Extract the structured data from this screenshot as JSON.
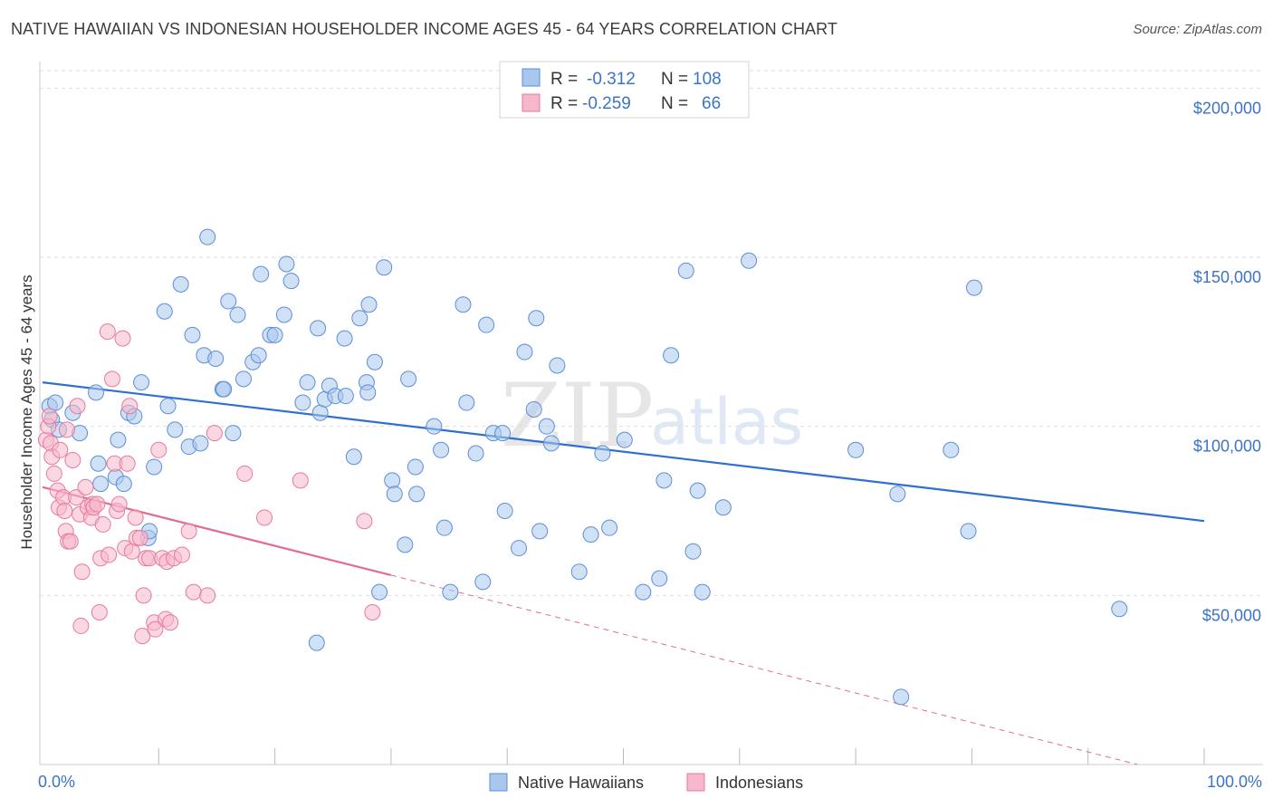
{
  "title": "NATIVE HAWAIIAN VS INDONESIAN HOUSEHOLDER INCOME AGES 45 - 64 YEARS CORRELATION CHART",
  "source": "Source: ZipAtlas.com",
  "watermark": {
    "zip": "ZIP",
    "atlas": "atlas"
  },
  "colors": {
    "blue_fill": "#a9c6ec",
    "blue_stroke": "#5b8fd6",
    "blue_line": "#2f6fcf",
    "pink_fill": "#f5b8cb",
    "pink_stroke": "#e8799d",
    "pink_line": "#e26c95",
    "grid": "#dddddd",
    "axis_text": "#3b73c7"
  },
  "legend": {
    "rows": [
      {
        "r_label": "R =",
        "r_value": "-0.312",
        "n_label": "N =",
        "n_value": "108",
        "swatch": "blue"
      },
      {
        "r_label": "R =",
        "r_value": "-0.259",
        "n_label": "N =",
        "n_value": "66",
        "swatch": "pink"
      }
    ]
  },
  "bottom_legend": [
    {
      "label": "Native Hawaiians",
      "swatch": "blue"
    },
    {
      "label": "Indonesians",
      "swatch": "pink"
    }
  ],
  "chart_data": {
    "type": "scatter",
    "xlabel": "",
    "ylabel": "Householder Income Ages 45 - 64 years",
    "xlim": [
      0,
      100
    ],
    "ylim": [
      0,
      210000
    ],
    "x_tick_labels": [
      "0.0%",
      "100.0%"
    ],
    "y_ticks": [
      50000,
      100000,
      150000,
      200000
    ],
    "y_tick_labels": [
      "$50,000",
      "$100,000",
      "$150,000",
      "$200,000"
    ],
    "grid": true,
    "legend_placement": "top-center",
    "series": [
      {
        "name": "Native Hawaiians",
        "color": "blue",
        "regression": {
          "x": [
            0,
            100
          ],
          "y": [
            113000,
            72000
          ]
        },
        "points": [
          [
            0.6,
            106000
          ],
          [
            0.8,
            102000
          ],
          [
            1.1,
            107000
          ],
          [
            1.4,
            99000
          ],
          [
            2.6,
            104000
          ],
          [
            3.2,
            98000
          ],
          [
            4.6,
            110000
          ],
          [
            4.8,
            89000
          ],
          [
            5.0,
            83000
          ],
          [
            6.3,
            85000
          ],
          [
            6.5,
            96000
          ],
          [
            7.0,
            83000
          ],
          [
            7.4,
            104000
          ],
          [
            7.9,
            103000
          ],
          [
            8.5,
            113000
          ],
          [
            9.1,
            67000
          ],
          [
            9.2,
            69000
          ],
          [
            9.6,
            88000
          ],
          [
            10.5,
            134000
          ],
          [
            10.8,
            106000
          ],
          [
            11.4,
            99000
          ],
          [
            11.9,
            142000
          ],
          [
            12.6,
            94000
          ],
          [
            12.9,
            127000
          ],
          [
            13.6,
            95000
          ],
          [
            13.9,
            121000
          ],
          [
            14.2,
            156000
          ],
          [
            14.9,
            120000
          ],
          [
            15.5,
            111000
          ],
          [
            15.6,
            111000
          ],
          [
            16.0,
            137000
          ],
          [
            16.4,
            98000
          ],
          [
            16.8,
            133000
          ],
          [
            17.3,
            114000
          ],
          [
            18.1,
            119000
          ],
          [
            18.6,
            121000
          ],
          [
            18.8,
            145000
          ],
          [
            19.6,
            127000
          ],
          [
            20.0,
            127000
          ],
          [
            20.8,
            133000
          ],
          [
            21.0,
            148000
          ],
          [
            21.4,
            143000
          ],
          [
            22.4,
            107000
          ],
          [
            22.8,
            113000
          ],
          [
            23.7,
            129000
          ],
          [
            23.9,
            104000
          ],
          [
            24.3,
            108000
          ],
          [
            24.7,
            112000
          ],
          [
            25.2,
            109000
          ],
          [
            26.0,
            126000
          ],
          [
            26.8,
            91000
          ],
          [
            27.3,
            132000
          ],
          [
            27.9,
            113000
          ],
          [
            28.1,
            136000
          ],
          [
            28.6,
            119000
          ],
          [
            29.0,
            51000
          ],
          [
            29.4,
            147000
          ],
          [
            30.1,
            84000
          ],
          [
            30.3,
            80000
          ],
          [
            31.2,
            65000
          ],
          [
            31.5,
            114000
          ],
          [
            32.1,
            88000
          ],
          [
            32.2,
            80000
          ],
          [
            33.7,
            100000
          ],
          [
            34.3,
            93000
          ],
          [
            34.6,
            70000
          ],
          [
            35.1,
            51000
          ],
          [
            36.2,
            136000
          ],
          [
            36.5,
            107000
          ],
          [
            37.3,
            92000
          ],
          [
            37.9,
            54000
          ],
          [
            38.2,
            130000
          ],
          [
            38.8,
            98000
          ],
          [
            39.6,
            98000
          ],
          [
            39.8,
            75000
          ],
          [
            41.0,
            64000
          ],
          [
            41.5,
            122000
          ],
          [
            42.3,
            105000
          ],
          [
            42.5,
            132000
          ],
          [
            42.8,
            69000
          ],
          [
            43.4,
            100000
          ],
          [
            43.8,
            95000
          ],
          [
            44.3,
            118000
          ],
          [
            46.2,
            57000
          ],
          [
            47.2,
            68000
          ],
          [
            48.2,
            92000
          ],
          [
            48.8,
            70000
          ],
          [
            50.1,
            96000
          ],
          [
            51.7,
            51000
          ],
          [
            53.1,
            55000
          ],
          [
            53.5,
            84000
          ],
          [
            54.1,
            121000
          ],
          [
            55.4,
            146000
          ],
          [
            56.0,
            63000
          ],
          [
            56.4,
            81000
          ],
          [
            56.8,
            51000
          ],
          [
            58.6,
            76000
          ],
          [
            60.8,
            149000
          ],
          [
            70.0,
            93000
          ],
          [
            73.6,
            80000
          ],
          [
            73.9,
            20000
          ],
          [
            78.2,
            93000
          ],
          [
            79.7,
            69000
          ],
          [
            80.2,
            141000
          ],
          [
            92.7,
            46000
          ],
          [
            23.6,
            36000
          ],
          [
            26.1,
            109000
          ],
          [
            28.0,
            110000
          ]
        ]
      },
      {
        "name": "Indonesians",
        "color": "pink",
        "regression": {
          "x": [
            0,
            30
          ],
          "y": [
            82000,
            56000
          ]
        },
        "regression_extension": {
          "x": [
            30,
            100
          ],
          "y": [
            56000,
            -5000
          ]
        },
        "points": [
          [
            0.3,
            96000
          ],
          [
            0.5,
            100000
          ],
          [
            0.6,
            103000
          ],
          [
            0.7,
            95000
          ],
          [
            0.8,
            91000
          ],
          [
            1.0,
            86000
          ],
          [
            1.3,
            81000
          ],
          [
            1.4,
            76000
          ],
          [
            1.5,
            93000
          ],
          [
            1.8,
            79000
          ],
          [
            1.9,
            75000
          ],
          [
            2.0,
            69000
          ],
          [
            2.1,
            99000
          ],
          [
            2.2,
            66000
          ],
          [
            2.4,
            66000
          ],
          [
            2.6,
            90000
          ],
          [
            2.9,
            79000
          ],
          [
            3.0,
            106000
          ],
          [
            3.2,
            74000
          ],
          [
            3.4,
            57000
          ],
          [
            3.3,
            41000
          ],
          [
            3.7,
            82000
          ],
          [
            3.9,
            76000
          ],
          [
            4.2,
            73000
          ],
          [
            4.3,
            77000
          ],
          [
            4.4,
            76000
          ],
          [
            4.7,
            77000
          ],
          [
            4.9,
            45000
          ],
          [
            5.0,
            61000
          ],
          [
            5.2,
            71000
          ],
          [
            5.6,
            128000
          ],
          [
            5.7,
            62000
          ],
          [
            6.0,
            114000
          ],
          [
            6.2,
            89000
          ],
          [
            6.4,
            75000
          ],
          [
            6.6,
            77000
          ],
          [
            6.9,
            126000
          ],
          [
            7.1,
            64000
          ],
          [
            7.3,
            89000
          ],
          [
            7.5,
            106000
          ],
          [
            7.7,
            63000
          ],
          [
            8.0,
            73000
          ],
          [
            8.1,
            67000
          ],
          [
            8.4,
            67000
          ],
          [
            8.6,
            38000
          ],
          [
            8.7,
            50000
          ],
          [
            8.9,
            61000
          ],
          [
            9.2,
            61000
          ],
          [
            9.6,
            42000
          ],
          [
            9.7,
            40000
          ],
          [
            10.0,
            93000
          ],
          [
            10.3,
            61000
          ],
          [
            10.6,
            43000
          ],
          [
            10.7,
            60000
          ],
          [
            11.0,
            42000
          ],
          [
            11.3,
            61000
          ],
          [
            12.0,
            62000
          ],
          [
            12.6,
            69000
          ],
          [
            13.0,
            51000
          ],
          [
            14.2,
            50000
          ],
          [
            14.8,
            98000
          ],
          [
            17.4,
            86000
          ],
          [
            19.1,
            73000
          ],
          [
            22.2,
            84000
          ],
          [
            27.7,
            72000
          ],
          [
            28.4,
            45000
          ]
        ]
      }
    ]
  }
}
